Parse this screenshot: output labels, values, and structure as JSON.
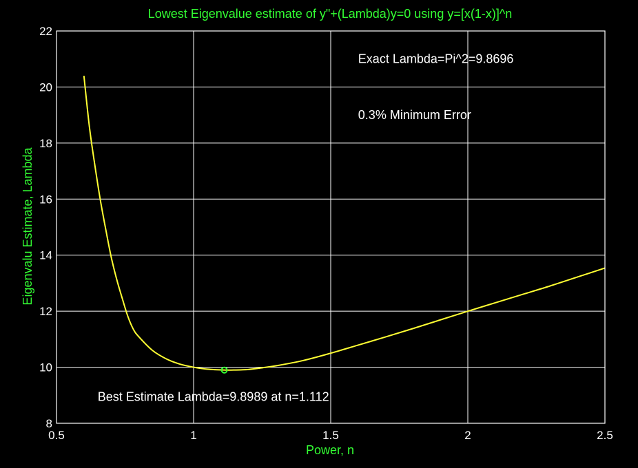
{
  "chart_data": {
    "type": "line",
    "title": "Lowest Eigenvalue estimate of y\"+(Lambda)y=0 using y=[x(1-x)]^n",
    "xlabel": "Power, n",
    "ylabel": "Eigenvalu Estimate, Lambda",
    "xlim": [
      0.5,
      2.5
    ],
    "ylim": [
      8,
      22
    ],
    "xticks": [
      0.5,
      1,
      1.5,
      2,
      2.5
    ],
    "xtick_labels": [
      "0.5",
      "1",
      "1.5",
      "2",
      "2.5"
    ],
    "yticks": [
      8,
      10,
      12,
      14,
      16,
      18,
      20,
      22
    ],
    "ytick_labels": [
      "8",
      "10",
      "12",
      "14",
      "16",
      "18",
      "20",
      "22"
    ],
    "grid": true,
    "series": [
      {
        "color": "#ffff33",
        "x": [
          0.6,
          0.62,
          0.64,
          0.66,
          0.68,
          0.7,
          0.72,
          0.74,
          0.76,
          0.78,
          0.8,
          0.85,
          0.9,
          0.95,
          1.0,
          1.05,
          1.112,
          1.15,
          1.2,
          1.25,
          1.3,
          1.4,
          1.5,
          1.6,
          1.7,
          1.8,
          1.9,
          2.0,
          2.1,
          2.2,
          2.3,
          2.4,
          2.5
        ],
        "y": [
          20.4,
          18.58,
          17.2,
          15.96,
          14.9,
          13.91,
          13.12,
          12.45,
          11.82,
          11.36,
          11.09,
          10.6,
          10.3,
          10.11,
          10.0,
          9.93,
          9.8989,
          9.9,
          9.92,
          9.98,
          10.05,
          10.24,
          10.5,
          10.79,
          11.08,
          11.38,
          11.69,
          12.0,
          12.3,
          12.6,
          12.9,
          13.22,
          13.54
        ]
      }
    ],
    "marker": {
      "x": 1.112,
      "y": 9.8989,
      "symbol": "o",
      "color": "#33ff33"
    },
    "annotations": [
      {
        "text": "Exact Lambda=Pi^2=9.8696",
        "x": 1.6,
        "y": 21.0
      },
      {
        "text": "0.3% Minimum Error",
        "x": 1.6,
        "y": 19.0
      },
      {
        "text": "Best Estimate Lambda=9.8989 at n=1.112",
        "x": 0.65,
        "y": 8.95
      }
    ],
    "colors": {
      "background": "#000000",
      "axes_text": "#ffffff",
      "titles": "#33ff33",
      "curve": "#ffff33",
      "grid": "#ffffff"
    }
  }
}
